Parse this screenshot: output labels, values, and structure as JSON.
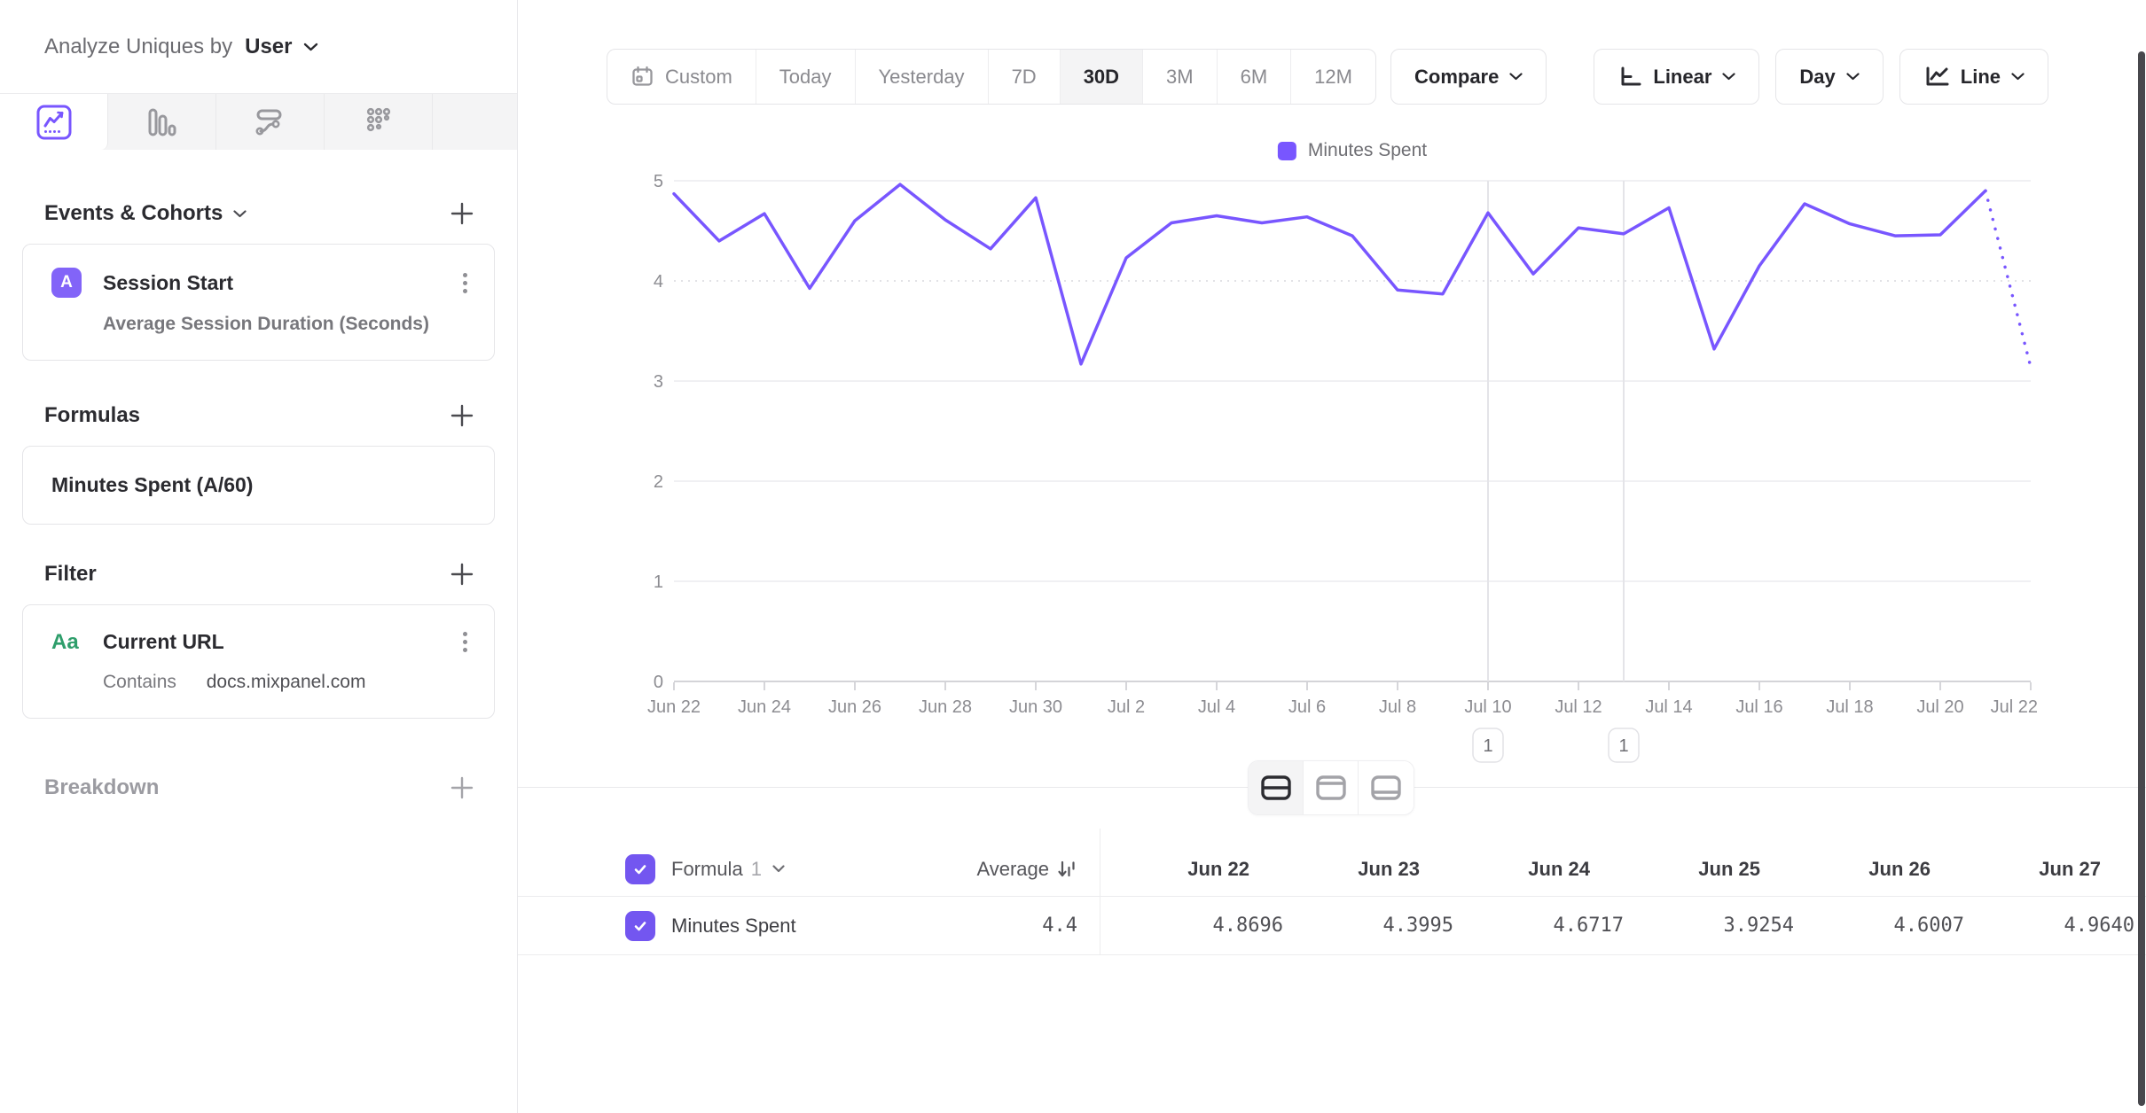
{
  "colors": {
    "accent": "#7856ff",
    "green": "#2e9e6b"
  },
  "sidebar": {
    "analyze_by_label": "Analyze Uniques by",
    "analyze_by_value": "User",
    "tabs": [
      {
        "name": "insights",
        "active": true
      },
      {
        "name": "bar-chart",
        "active": false
      },
      {
        "name": "flows",
        "active": false
      },
      {
        "name": "retention",
        "active": false
      }
    ],
    "events_section": {
      "title": "Events & Cohorts",
      "event": {
        "badge": "A",
        "name": "Session Start",
        "aggregation": "Average Session Duration (Seconds)"
      }
    },
    "formulas_section": {
      "title": "Formulas",
      "formula": "Minutes Spent (A/60)"
    },
    "filter_section": {
      "title": "Filter",
      "filter": {
        "badge": "Aa",
        "property": "Current URL",
        "operator": "Contains",
        "value": "docs.mixpanel.com"
      }
    },
    "breakdown_section": {
      "title": "Breakdown"
    }
  },
  "toolbar": {
    "date_ranges": [
      "Custom",
      "Today",
      "Yesterday",
      "7D",
      "30D",
      "3M",
      "6M",
      "12M"
    ],
    "active_range": "30D",
    "compare_label": "Compare",
    "scale_label": "Linear",
    "interval_label": "Day",
    "chart_type_label": "Line"
  },
  "chart_data": {
    "type": "line",
    "legend": [
      {
        "label": "Minutes Spent",
        "color": "#7856ff"
      }
    ],
    "x": [
      "Jun 22",
      "Jun 23",
      "Jun 24",
      "Jun 25",
      "Jun 26",
      "Jun 27",
      "Jun 28",
      "Jun 29",
      "Jun 30",
      "Jul 1",
      "Jul 2",
      "Jul 3",
      "Jul 4",
      "Jul 5",
      "Jul 6",
      "Jul 7",
      "Jul 8",
      "Jul 9",
      "Jul 10",
      "Jul 11",
      "Jul 12",
      "Jul 13",
      "Jul 14",
      "Jul 15",
      "Jul 16",
      "Jul 17",
      "Jul 18",
      "Jul 19",
      "Jul 20",
      "Jul 21",
      "Jul 22"
    ],
    "series": [
      {
        "name": "Minutes Spent",
        "color": "#7856ff",
        "last_segment_dotted": true,
        "values": [
          4.8696,
          4.3995,
          4.6717,
          3.9254,
          4.6007,
          4.964,
          4.61,
          4.32,
          4.83,
          3.17,
          4.23,
          4.58,
          4.65,
          4.58,
          4.64,
          4.45,
          3.91,
          3.87,
          4.68,
          4.07,
          4.53,
          4.47,
          4.73,
          3.32,
          4.15,
          4.77,
          4.57,
          4.45,
          4.46,
          4.9,
          3.14
        ]
      }
    ],
    "ylim": [
      0,
      5
    ],
    "yticks": [
      0,
      1,
      2,
      3,
      4,
      5
    ],
    "xtick_every": 2,
    "grid": "horizontal",
    "legend_position": "top-center",
    "annotations": [
      {
        "x": "Jul 10",
        "count": "1"
      },
      {
        "x": "Jul 13",
        "count": "1"
      }
    ]
  },
  "table": {
    "series_group_label": "Formula",
    "series_group_index": "1",
    "average_header": "Average",
    "columns": [
      "Jun 22",
      "Jun 23",
      "Jun 24",
      "Jun 25",
      "Jun 26",
      "Jun 27"
    ],
    "rows": [
      {
        "label": "Minutes Spent",
        "checked": true,
        "average": "4.4",
        "values": [
          "4.8696",
          "4.3995",
          "4.6717",
          "3.9254",
          "4.6007",
          "4.9640"
        ]
      }
    ]
  }
}
